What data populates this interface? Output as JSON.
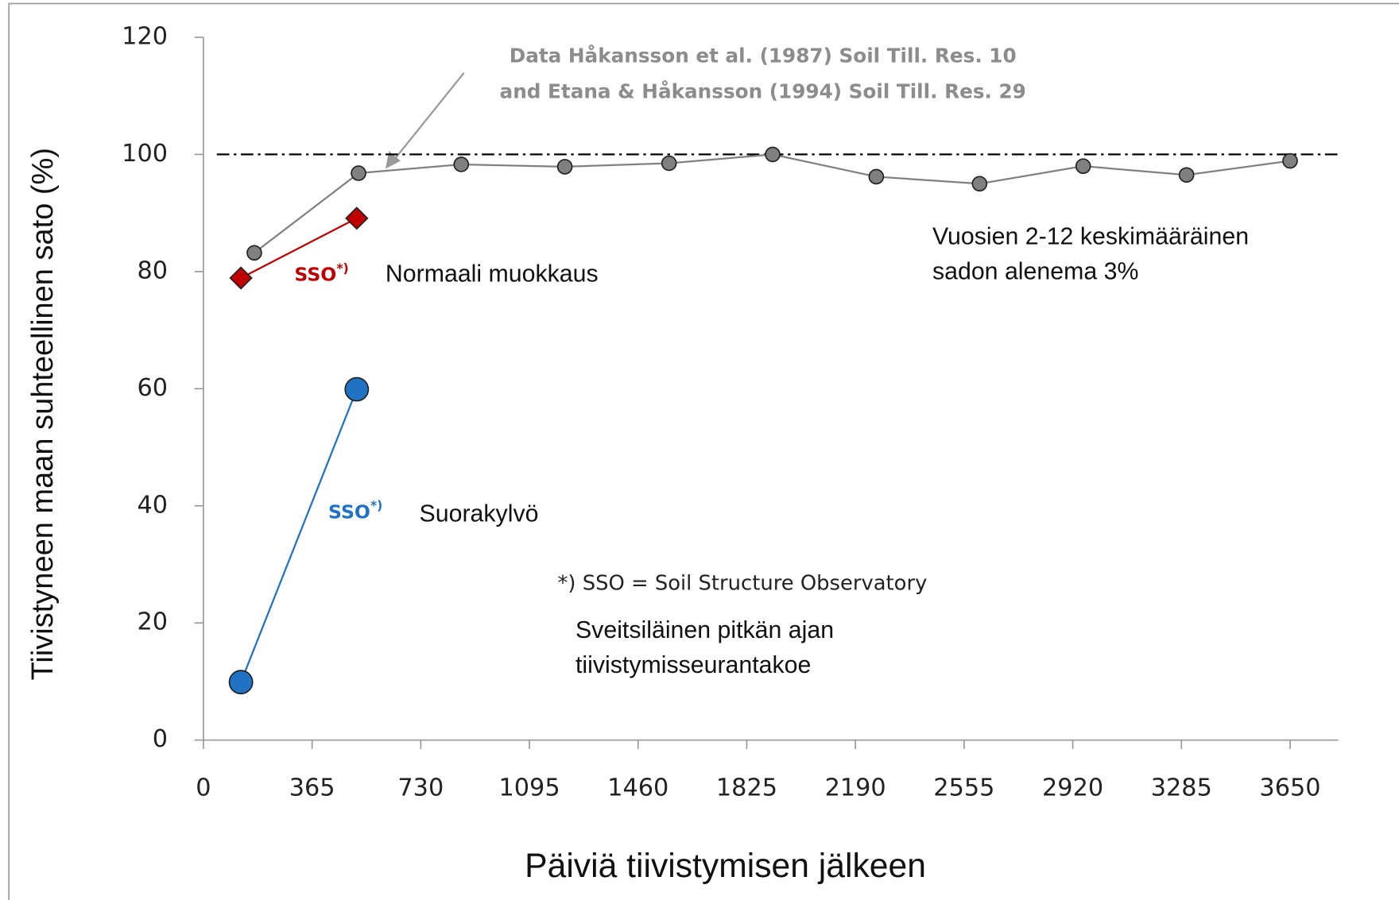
{
  "chart_data": {
    "type": "line",
    "xlabel": "Päiviä tiivistymisen jälkeen",
    "ylabel": "Tiivistyneen maan suhteellinen sato (%)",
    "xlim": [
      0,
      3812
    ],
    "xticks": [
      0,
      365,
      730,
      1095,
      1460,
      1825,
      2190,
      2555,
      2920,
      3285,
      3650
    ],
    "ylim": [
      0,
      120
    ],
    "yticks": [
      0,
      20,
      40,
      60,
      80,
      100,
      120
    ],
    "reference_line": 100,
    "series": [
      {
        "color": "#808080",
        "x": [
          171,
          521,
          866,
          1214,
          1564,
          1912,
          2260,
          2607,
          2955,
          3302,
          3650
        ],
        "values": [
          83.2,
          96.8,
          98.3,
          97.9,
          98.5,
          100,
          96.2,
          95,
          98,
          96.5,
          98.9
        ]
      },
      {
        "color": "#c00000",
        "x": [
          126,
          515
        ],
        "values": [
          78.9,
          89.1
        ]
      },
      {
        "color": "#1f72c4",
        "x": [
          126,
          515
        ],
        "values": [
          9.9,
          59.9
        ]
      }
    ],
    "annotations": {
      "source_1": "Data Håkansson et al. (1987) Soil Till. Res. 10",
      "source_2": "and Etana & Håkansson (1994) Soil Till. Res. 29",
      "sso": "SSO",
      "sso_mark": "*)",
      "normal": "Normaali muokkaus",
      "direct": "Suorakylvö",
      "footnote": "*) SSO = Soil Structure Observatory",
      "swiss_1": "Sveitsiläinen pitkän ajan",
      "swiss_2": "tiivistymisseurantakoe",
      "mean_1": "Vuosien 2-12 keskimääräinen",
      "mean_2": "sadon alenema 3%"
    }
  }
}
